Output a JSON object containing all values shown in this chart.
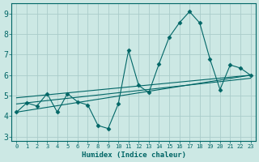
{
  "xlabel": "Humidex (Indice chaleur)",
  "bg_color": "#cce8e4",
  "plot_bg_color": "#cce8e4",
  "grid_color": "#aaccca",
  "line_color": "#006666",
  "xlim": [
    -0.5,
    23.5
  ],
  "ylim": [
    2.8,
    9.5
  ],
  "xticks": [
    0,
    1,
    2,
    3,
    4,
    5,
    6,
    7,
    8,
    9,
    10,
    11,
    12,
    13,
    14,
    15,
    16,
    17,
    18,
    19,
    20,
    21,
    22,
    23
  ],
  "yticks": [
    3,
    4,
    5,
    6,
    7,
    8,
    9
  ],
  "zigzag_x": [
    0,
    1,
    2,
    3,
    4,
    5,
    6,
    7,
    8,
    9,
    10,
    11,
    12,
    13,
    14,
    15,
    16,
    17,
    18,
    19,
    20,
    21,
    22,
    23
  ],
  "zigzag_y": [
    4.2,
    4.65,
    4.5,
    5.1,
    4.2,
    5.1,
    4.7,
    4.55,
    3.55,
    3.4,
    4.6,
    7.2,
    5.5,
    5.15,
    6.55,
    7.85,
    8.55,
    9.1,
    8.55,
    6.8,
    5.3,
    6.5,
    6.35,
    6.0
  ],
  "lines": [
    {
      "x": [
        0,
        23
      ],
      "y": [
        4.2,
        6.0
      ]
    },
    {
      "x": [
        0,
        23
      ],
      "y": [
        4.6,
        5.85
      ]
    },
    {
      "x": [
        0,
        23
      ],
      "y": [
        4.9,
        6.0
      ]
    }
  ]
}
